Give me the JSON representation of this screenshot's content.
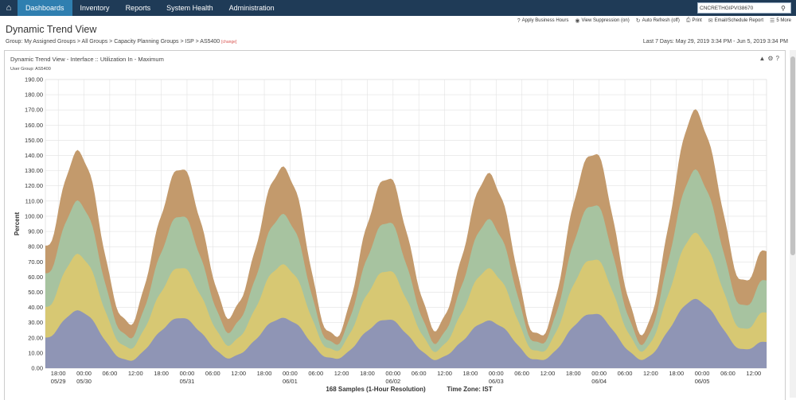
{
  "nav": {
    "items": [
      "Dashboards",
      "Inventory",
      "Reports",
      "System Health",
      "Administration"
    ],
    "active": "Dashboards",
    "search_value": "CNCRETHGIPVI38670"
  },
  "toolbar": [
    {
      "icon": "help-circle-icon",
      "label": "Apply Business Hours"
    },
    {
      "icon": "eye-icon",
      "label": "View Suppression (on)"
    },
    {
      "icon": "refresh-icon",
      "label": "Auto Refresh (off)"
    },
    {
      "icon": "printer-icon",
      "label": "Print"
    },
    {
      "icon": "mail-icon",
      "label": "Email/Schedule Report"
    },
    {
      "icon": "menu-icon",
      "label": "5 More"
    }
  ],
  "page": {
    "title": "Dynamic Trend View",
    "group_label": "Group:",
    "breadcrumb": [
      "My Assigned Groups",
      "All Groups",
      "Capacity Planning Groups",
      "ISP",
      "AS5400"
    ],
    "change_label": "[change]",
    "date_range": "Last 7 Days: May 29, 2019 3:34 PM - Jun 5, 2019 3:34 PM"
  },
  "panel": {
    "title": "Dynamic Trend View - Interface :: Utilization In - Maximum",
    "subtitle": "User Group: AS5400"
  },
  "chart_data": {
    "type": "area",
    "ylabel": "Percent",
    "xlabel": "168 Samples (1-Hour Resolution)",
    "timezone": "Time Zone: IST",
    "ylim": [
      0,
      190
    ],
    "ystep": 10,
    "series_colors": [
      "#8f95b5",
      "#d7c873",
      "#a7c3a0",
      "#c39a6c"
    ],
    "x_ticks": [
      {
        "l1": "18:00",
        "l2": "05/29",
        "h": 15
      },
      {
        "l1": "00:00",
        "l2": "05/30",
        "h": 21
      },
      {
        "l1": "06:00",
        "l2": "",
        "h": 27
      },
      {
        "l1": "12:00",
        "l2": "",
        "h": 33
      },
      {
        "l1": "18:00",
        "l2": "",
        "h": 39
      },
      {
        "l1": "00:00",
        "l2": "05/31",
        "h": 45
      },
      {
        "l1": "06:00",
        "l2": "",
        "h": 51
      },
      {
        "l1": "12:00",
        "l2": "",
        "h": 57
      },
      {
        "l1": "18:00",
        "l2": "",
        "h": 63
      },
      {
        "l1": "00:00",
        "l2": "06/01",
        "h": 69
      },
      {
        "l1": "06:00",
        "l2": "",
        "h": 75
      },
      {
        "l1": "12:00",
        "l2": "",
        "h": 81
      },
      {
        "l1": "18:00",
        "l2": "",
        "h": 87
      },
      {
        "l1": "00:00",
        "l2": "06/02",
        "h": 93
      },
      {
        "l1": "06:00",
        "l2": "",
        "h": 99
      },
      {
        "l1": "12:00",
        "l2": "",
        "h": 105
      },
      {
        "l1": "18:00",
        "l2": "",
        "h": 111
      },
      {
        "l1": "00:00",
        "l2": "06/03",
        "h": 117
      },
      {
        "l1": "06:00",
        "l2": "",
        "h": 123
      },
      {
        "l1": "12:00",
        "l2": "",
        "h": 129
      },
      {
        "l1": "18:00",
        "l2": "",
        "h": 135
      },
      {
        "l1": "00:00",
        "l2": "06/04",
        "h": 141
      },
      {
        "l1": "06:00",
        "l2": "",
        "h": 147
      },
      {
        "l1": "12:00",
        "l2": "",
        "h": 153
      },
      {
        "l1": "18:00",
        "l2": "",
        "h": 159
      },
      {
        "l1": "00:00",
        "l2": "06/05",
        "h": 165
      },
      {
        "l1": "06:00",
        "l2": "",
        "h": 171
      },
      {
        "l1": "12:00",
        "l2": "",
        "h": 177
      }
    ],
    "x_domain": [
      12,
      180
    ],
    "peaks": [
      {
        "h": 19.5,
        "tot": 143,
        "base": 38,
        "yel": 75,
        "grn": 110
      },
      {
        "h": 43.5,
        "tot": 131,
        "base": 33,
        "yel": 66,
        "grn": 100
      },
      {
        "h": 67.5,
        "tot": 132,
        "base": 33,
        "yel": 68,
        "grn": 101
      },
      {
        "h": 91.5,
        "tot": 125,
        "base": 32,
        "yel": 64,
        "grn": 96
      },
      {
        "h": 115.5,
        "tot": 127,
        "base": 31,
        "yel": 65,
        "grn": 97
      },
      {
        "h": 139.5,
        "tot": 142,
        "base": 36,
        "yel": 72,
        "grn": 108
      },
      {
        "h": 163.5,
        "tot": 168,
        "base": 45,
        "yel": 88,
        "grn": 129
      }
    ],
    "troughs": [
      {
        "h": 31,
        "tot": 29,
        "base": 5,
        "yel": 13,
        "grn": 20
      },
      {
        "h": 55,
        "tot": 35,
        "base": 7,
        "yel": 16,
        "grn": 25
      },
      {
        "h": 79,
        "tot": 20,
        "base": 6,
        "yel": 11,
        "grn": 15
      },
      {
        "h": 103,
        "tot": 27,
        "base": 6,
        "yel": 12,
        "grn": 18
      },
      {
        "h": 127,
        "tot": 20,
        "base": 5,
        "yel": 10,
        "grn": 15
      },
      {
        "h": 151,
        "tot": 24,
        "base": 6,
        "yel": 12,
        "grn": 17
      },
      {
        "h": 175,
        "tot": 56,
        "base": 12,
        "yel": 25,
        "grn": 40
      }
    ],
    "start": {
      "h": 12,
      "tot": 80,
      "base": 20,
      "yel": 40,
      "grn": 62
    },
    "end": {
      "h": 180,
      "tot": 80,
      "base": 18,
      "yel": 38,
      "grn": 60
    }
  }
}
